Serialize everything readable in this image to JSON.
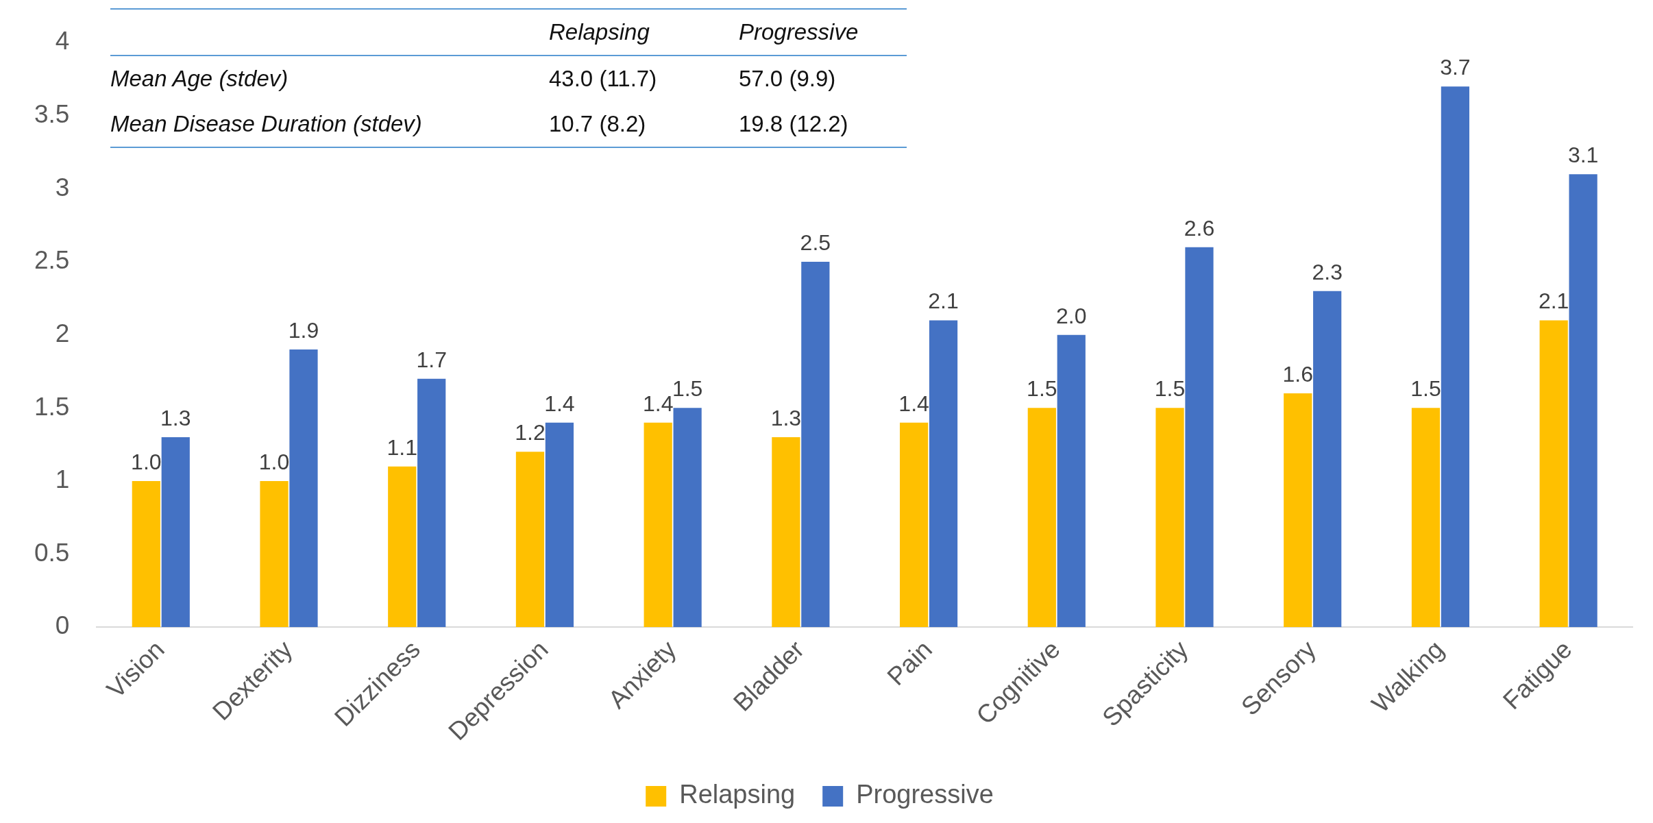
{
  "chart_data": {
    "type": "bar",
    "categories": [
      "Vision",
      "Dexterity",
      "Dizziness",
      "Depression",
      "Anxiety",
      "Bladder",
      "Pain",
      "Cognitive",
      "Spasticity",
      "Sensory",
      "Walking",
      "Fatigue"
    ],
    "series": [
      {
        "name": "Relapsing",
        "color": "#ffc000",
        "values": [
          1.0,
          1.0,
          1.1,
          1.2,
          1.4,
          1.3,
          1.4,
          1.5,
          1.5,
          1.6,
          1.5,
          2.1
        ],
        "value_labels": [
          "1.0",
          "1.0",
          "1.1",
          "1.2",
          "1.4",
          "1.3",
          "1.4",
          "1.5",
          "1.5",
          "1.6",
          "1.5",
          "2.1"
        ]
      },
      {
        "name": "Progressive",
        "color": "#4472c4",
        "values": [
          1.3,
          1.9,
          1.7,
          1.4,
          1.5,
          2.5,
          2.1,
          2.0,
          2.6,
          2.3,
          3.7,
          3.1
        ],
        "value_labels": [
          "1.3",
          "1.9",
          "1.7",
          "1.4",
          "1.5",
          "2.5",
          "2.1",
          "2.0",
          "2.6",
          "2.3",
          "3.7",
          "3.1"
        ]
      }
    ],
    "ylim": [
      0,
      4
    ],
    "yticks": [
      0,
      0.5,
      1,
      1.5,
      2,
      2.5,
      3,
      3.5,
      4
    ],
    "grid": false,
    "legend": "bottom",
    "annotations": [
      "Relapsing",
      "Progressive",
      "Mean Age (stdev)",
      "43.0 (11.7)",
      "57.0 (9.9)",
      "Mean Disease Duration (stdev)",
      "10.7 (8.2)",
      "19.8 (12.2)"
    ]
  }
}
